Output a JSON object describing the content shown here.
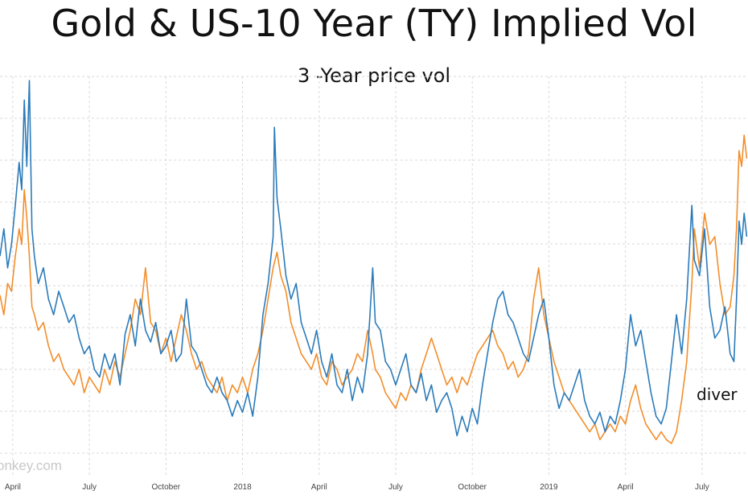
{
  "title": "Gold & US-10 Year (TY) Implied Vol",
  "subtitle": "3 -Year price vol",
  "annotation": "diver",
  "watermark": "onkey.com",
  "colors": {
    "series_blue": "#2b7bba",
    "series_orange": "#f28e2b",
    "grid": "#d9d9d9"
  },
  "chart_data": {
    "type": "line",
    "title": "Gold & US-10 Year (TY) Implied Vol",
    "subtitle": "3 -Year price vol",
    "xlabel": "",
    "ylabel": "",
    "x_ticks": [
      {
        "label": "April",
        "t": 0.5
      },
      {
        "label": "July",
        "t": 3.5
      },
      {
        "label": "October",
        "t": 6.5
      },
      {
        "label": "2018",
        "t": 9.5
      },
      {
        "label": "April",
        "t": 12.5
      },
      {
        "label": "July",
        "t": 15.5
      },
      {
        "label": "October",
        "t": 18.5
      },
      {
        "label": "2019",
        "t": 21.5
      },
      {
        "label": "April",
        "t": 24.5
      },
      {
        "label": "July",
        "t": 27.5
      }
    ],
    "xlim": [
      0.0,
      29.3
    ],
    "ylim": [
      0,
      100
    ],
    "grid": true,
    "series": [
      {
        "values": [
          [
            0.0,
            55
          ],
          [
            0.15,
            62
          ],
          [
            0.3,
            52
          ],
          [
            0.45,
            58
          ],
          [
            0.6,
            68
          ],
          [
            0.75,
            79
          ],
          [
            0.85,
            72
          ],
          [
            0.95,
            95
          ],
          [
            1.05,
            78
          ],
          [
            1.15,
            100
          ],
          [
            1.25,
            62
          ],
          [
            1.35,
            55
          ],
          [
            1.5,
            48
          ],
          [
            1.7,
            52
          ],
          [
            1.9,
            44
          ],
          [
            2.1,
            40
          ],
          [
            2.3,
            46
          ],
          [
            2.5,
            42
          ],
          [
            2.7,
            38
          ],
          [
            2.9,
            40
          ],
          [
            3.1,
            34
          ],
          [
            3.3,
            30
          ],
          [
            3.5,
            32
          ],
          [
            3.7,
            26
          ],
          [
            3.9,
            24
          ],
          [
            4.1,
            30
          ],
          [
            4.3,
            26
          ],
          [
            4.5,
            30
          ],
          [
            4.7,
            22
          ],
          [
            4.9,
            35
          ],
          [
            5.1,
            40
          ],
          [
            5.3,
            32
          ],
          [
            5.5,
            44
          ],
          [
            5.7,
            36
          ],
          [
            5.9,
            33
          ],
          [
            6.1,
            38
          ],
          [
            6.3,
            30
          ],
          [
            6.5,
            32
          ],
          [
            6.7,
            36
          ],
          [
            6.9,
            28
          ],
          [
            7.1,
            30
          ],
          [
            7.3,
            44
          ],
          [
            7.5,
            32
          ],
          [
            7.7,
            30
          ],
          [
            7.9,
            26
          ],
          [
            8.1,
            22
          ],
          [
            8.3,
            20
          ],
          [
            8.5,
            24
          ],
          [
            8.7,
            20
          ],
          [
            8.9,
            18
          ],
          [
            9.1,
            14
          ],
          [
            9.3,
            18
          ],
          [
            9.5,
            15
          ],
          [
            9.7,
            20
          ],
          [
            9.9,
            14
          ],
          [
            10.1,
            24
          ],
          [
            10.3,
            40
          ],
          [
            10.5,
            48
          ],
          [
            10.7,
            60
          ],
          [
            10.75,
            88
          ],
          [
            10.85,
            70
          ],
          [
            11.0,
            62
          ],
          [
            11.2,
            50
          ],
          [
            11.4,
            44
          ],
          [
            11.6,
            48
          ],
          [
            11.8,
            38
          ],
          [
            12.0,
            34
          ],
          [
            12.2,
            30
          ],
          [
            12.4,
            36
          ],
          [
            12.6,
            28
          ],
          [
            12.8,
            24
          ],
          [
            13.0,
            30
          ],
          [
            13.2,
            22
          ],
          [
            13.4,
            20
          ],
          [
            13.6,
            26
          ],
          [
            13.8,
            18
          ],
          [
            14.0,
            24
          ],
          [
            14.2,
            20
          ],
          [
            14.4,
            30
          ],
          [
            14.6,
            52
          ],
          [
            14.7,
            38
          ],
          [
            14.9,
            36
          ],
          [
            15.1,
            28
          ],
          [
            15.3,
            26
          ],
          [
            15.5,
            22
          ],
          [
            15.7,
            26
          ],
          [
            15.9,
            30
          ],
          [
            16.1,
            22
          ],
          [
            16.3,
            20
          ],
          [
            16.5,
            25
          ],
          [
            16.7,
            18
          ],
          [
            16.9,
            22
          ],
          [
            17.1,
            15
          ],
          [
            17.3,
            18
          ],
          [
            17.5,
            20
          ],
          [
            17.7,
            16
          ],
          [
            17.9,
            9
          ],
          [
            18.1,
            14
          ],
          [
            18.3,
            10
          ],
          [
            18.5,
            16
          ],
          [
            18.7,
            12
          ],
          [
            18.9,
            22
          ],
          [
            19.1,
            30
          ],
          [
            19.3,
            38
          ],
          [
            19.5,
            44
          ],
          [
            19.7,
            46
          ],
          [
            19.9,
            40
          ],
          [
            20.1,
            38
          ],
          [
            20.3,
            34
          ],
          [
            20.5,
            30
          ],
          [
            20.7,
            28
          ],
          [
            20.9,
            34
          ],
          [
            21.1,
            40
          ],
          [
            21.3,
            44
          ],
          [
            21.5,
            34
          ],
          [
            21.7,
            22
          ],
          [
            21.9,
            16
          ],
          [
            22.1,
            20
          ],
          [
            22.3,
            18
          ],
          [
            22.5,
            22
          ],
          [
            22.7,
            26
          ],
          [
            22.9,
            18
          ],
          [
            23.1,
            14
          ],
          [
            23.3,
            12
          ],
          [
            23.5,
            15
          ],
          [
            23.7,
            10
          ],
          [
            23.9,
            14
          ],
          [
            24.1,
            12
          ],
          [
            24.3,
            18
          ],
          [
            24.5,
            26
          ],
          [
            24.7,
            40
          ],
          [
            24.9,
            32
          ],
          [
            25.1,
            36
          ],
          [
            25.3,
            28
          ],
          [
            25.5,
            20
          ],
          [
            25.7,
            14
          ],
          [
            25.9,
            12
          ],
          [
            26.1,
            16
          ],
          [
            26.3,
            28
          ],
          [
            26.5,
            40
          ],
          [
            26.7,
            30
          ],
          [
            26.9,
            44
          ],
          [
            27.1,
            68
          ],
          [
            27.2,
            54
          ],
          [
            27.4,
            50
          ],
          [
            27.6,
            62
          ],
          [
            27.8,
            42
          ],
          [
            28.0,
            34
          ],
          [
            28.2,
            36
          ],
          [
            28.4,
            42
          ],
          [
            28.6,
            30
          ],
          [
            28.75,
            28
          ],
          [
            28.85,
            44
          ],
          [
            28.95,
            64
          ],
          [
            29.05,
            58
          ],
          [
            29.15,
            66
          ],
          [
            29.25,
            60
          ]
        ]
      },
      {
        "values": [
          [
            0.0,
            45
          ],
          [
            0.15,
            40
          ],
          [
            0.3,
            48
          ],
          [
            0.45,
            46
          ],
          [
            0.6,
            55
          ],
          [
            0.75,
            62
          ],
          [
            0.85,
            58
          ],
          [
            0.95,
            72
          ],
          [
            1.05,
            65
          ],
          [
            1.15,
            55
          ],
          [
            1.25,
            42
          ],
          [
            1.35,
            40
          ],
          [
            1.5,
            36
          ],
          [
            1.7,
            38
          ],
          [
            1.9,
            32
          ],
          [
            2.1,
            28
          ],
          [
            2.3,
            30
          ],
          [
            2.5,
            26
          ],
          [
            2.7,
            24
          ],
          [
            2.9,
            22
          ],
          [
            3.1,
            26
          ],
          [
            3.3,
            20
          ],
          [
            3.5,
            24
          ],
          [
            3.7,
            22
          ],
          [
            3.9,
            20
          ],
          [
            4.1,
            26
          ],
          [
            4.3,
            22
          ],
          [
            4.5,
            28
          ],
          [
            4.7,
            24
          ],
          [
            4.9,
            30
          ],
          [
            5.1,
            36
          ],
          [
            5.3,
            44
          ],
          [
            5.5,
            40
          ],
          [
            5.7,
            52
          ],
          [
            5.9,
            38
          ],
          [
            6.1,
            36
          ],
          [
            6.3,
            30
          ],
          [
            6.5,
            34
          ],
          [
            6.7,
            28
          ],
          [
            6.9,
            34
          ],
          [
            7.1,
            40
          ],
          [
            7.3,
            36
          ],
          [
            7.5,
            30
          ],
          [
            7.7,
            26
          ],
          [
            7.9,
            28
          ],
          [
            8.1,
            24
          ],
          [
            8.3,
            22
          ],
          [
            8.5,
            20
          ],
          [
            8.7,
            24
          ],
          [
            8.9,
            18
          ],
          [
            9.1,
            22
          ],
          [
            9.3,
            20
          ],
          [
            9.5,
            24
          ],
          [
            9.7,
            20
          ],
          [
            9.9,
            26
          ],
          [
            10.1,
            30
          ],
          [
            10.3,
            36
          ],
          [
            10.5,
            44
          ],
          [
            10.7,
            52
          ],
          [
            10.85,
            56
          ],
          [
            11.0,
            50
          ],
          [
            11.2,
            46
          ],
          [
            11.4,
            38
          ],
          [
            11.6,
            34
          ],
          [
            11.8,
            30
          ],
          [
            12.0,
            28
          ],
          [
            12.2,
            26
          ],
          [
            12.4,
            30
          ],
          [
            12.6,
            24
          ],
          [
            12.8,
            22
          ],
          [
            13.0,
            28
          ],
          [
            13.2,
            26
          ],
          [
            13.4,
            22
          ],
          [
            13.6,
            24
          ],
          [
            13.8,
            26
          ],
          [
            14.0,
            30
          ],
          [
            14.2,
            28
          ],
          [
            14.4,
            36
          ],
          [
            14.6,
            30
          ],
          [
            14.7,
            26
          ],
          [
            14.9,
            24
          ],
          [
            15.1,
            20
          ],
          [
            15.3,
            18
          ],
          [
            15.5,
            16
          ],
          [
            15.7,
            20
          ],
          [
            15.9,
            18
          ],
          [
            16.1,
            22
          ],
          [
            16.3,
            20
          ],
          [
            16.5,
            26
          ],
          [
            16.7,
            30
          ],
          [
            16.9,
            34
          ],
          [
            17.1,
            30
          ],
          [
            17.3,
            26
          ],
          [
            17.5,
            22
          ],
          [
            17.7,
            24
          ],
          [
            17.9,
            20
          ],
          [
            18.1,
            24
          ],
          [
            18.3,
            22
          ],
          [
            18.5,
            26
          ],
          [
            18.7,
            30
          ],
          [
            18.9,
            32
          ],
          [
            19.1,
            34
          ],
          [
            19.3,
            36
          ],
          [
            19.5,
            32
          ],
          [
            19.7,
            30
          ],
          [
            19.9,
            26
          ],
          [
            20.1,
            28
          ],
          [
            20.3,
            24
          ],
          [
            20.5,
            26
          ],
          [
            20.7,
            30
          ],
          [
            20.9,
            44
          ],
          [
            21.1,
            52
          ],
          [
            21.3,
            40
          ],
          [
            21.5,
            34
          ],
          [
            21.7,
            28
          ],
          [
            21.9,
            24
          ],
          [
            22.1,
            20
          ],
          [
            22.3,
            18
          ],
          [
            22.5,
            16
          ],
          [
            22.7,
            14
          ],
          [
            22.9,
            12
          ],
          [
            23.1,
            10
          ],
          [
            23.3,
            12
          ],
          [
            23.5,
            8
          ],
          [
            23.7,
            10
          ],
          [
            23.9,
            12
          ],
          [
            24.1,
            10
          ],
          [
            24.3,
            14
          ],
          [
            24.5,
            12
          ],
          [
            24.7,
            18
          ],
          [
            24.9,
            22
          ],
          [
            25.1,
            16
          ],
          [
            25.3,
            12
          ],
          [
            25.5,
            10
          ],
          [
            25.7,
            8
          ],
          [
            25.9,
            10
          ],
          [
            26.1,
            8
          ],
          [
            26.3,
            7
          ],
          [
            26.5,
            10
          ],
          [
            26.7,
            18
          ],
          [
            26.9,
            28
          ],
          [
            27.1,
            48
          ],
          [
            27.2,
            62
          ],
          [
            27.4,
            52
          ],
          [
            27.6,
            66
          ],
          [
            27.8,
            58
          ],
          [
            28.0,
            60
          ],
          [
            28.2,
            48
          ],
          [
            28.4,
            40
          ],
          [
            28.6,
            42
          ],
          [
            28.75,
            50
          ],
          [
            28.85,
            62
          ],
          [
            28.95,
            82
          ],
          [
            29.05,
            78
          ],
          [
            29.15,
            86
          ],
          [
            29.25,
            80
          ]
        ]
      }
    ]
  }
}
